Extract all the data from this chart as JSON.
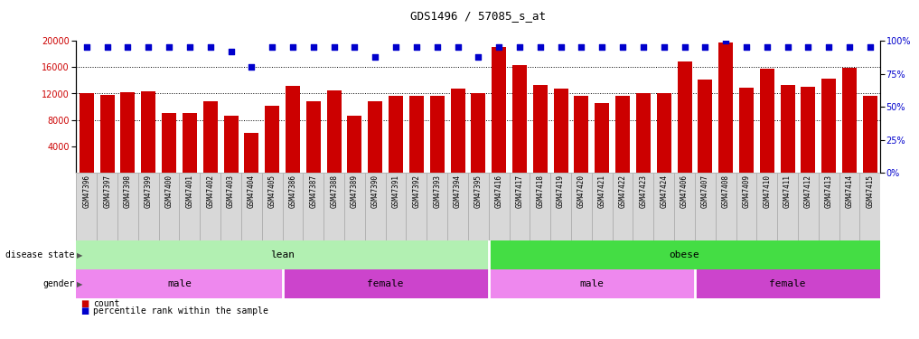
{
  "title": "GDS1496 / 57085_s_at",
  "samples": [
    "GSM47396",
    "GSM47397",
    "GSM47398",
    "GSM47399",
    "GSM47400",
    "GSM47401",
    "GSM47402",
    "GSM47403",
    "GSM47404",
    "GSM47405",
    "GSM47386",
    "GSM47387",
    "GSM47388",
    "GSM47389",
    "GSM47390",
    "GSM47391",
    "GSM47392",
    "GSM47393",
    "GSM47394",
    "GSM47395",
    "GSM47416",
    "GSM47417",
    "GSM47418",
    "GSM47419",
    "GSM47420",
    "GSM47421",
    "GSM47422",
    "GSM47423",
    "GSM47424",
    "GSM47406",
    "GSM47407",
    "GSM47408",
    "GSM47409",
    "GSM47410",
    "GSM47411",
    "GSM47412",
    "GSM47413",
    "GSM47414",
    "GSM47415"
  ],
  "counts": [
    12100,
    11800,
    12200,
    12300,
    9000,
    9000,
    10900,
    8600,
    6100,
    10200,
    13200,
    10800,
    12500,
    8700,
    10800,
    11600,
    11700,
    11600,
    12700,
    12000,
    19000,
    16300,
    13300,
    12800,
    11600,
    10500,
    11700,
    12100,
    12000,
    16800,
    14100,
    19700,
    12900,
    15700,
    13300,
    13000,
    14300,
    15900,
    11700
  ],
  "percentiles": [
    95,
    95,
    95,
    95,
    95,
    95,
    95,
    92,
    80,
    95,
    95,
    95,
    95,
    95,
    88,
    95,
    95,
    95,
    95,
    88,
    95,
    95,
    95,
    95,
    95,
    95,
    95,
    95,
    95,
    95,
    95,
    100,
    95,
    95,
    95,
    95,
    95,
    95,
    95
  ],
  "bar_color": "#cc0000",
  "dot_color": "#0000cc",
  "ylim_left": [
    0,
    20000
  ],
  "ylim_right": [
    0,
    100
  ],
  "yticks_left": [
    4000,
    8000,
    12000,
    16000,
    20000
  ],
  "yticks_right": [
    0,
    25,
    50,
    75,
    100
  ],
  "grid_values": [
    8000,
    12000,
    16000
  ],
  "disease_state_lean": [
    0,
    19
  ],
  "disease_state_obese": [
    20,
    38
  ],
  "gender_lean_male": [
    0,
    9
  ],
  "gender_lean_female": [
    10,
    19
  ],
  "gender_obese_male": [
    20,
    29
  ],
  "gender_obese_female": [
    30,
    38
  ],
  "lean_color": "#b2f0b2",
  "obese_color": "#44dd44",
  "male_color": "#ee88ee",
  "female_color": "#cc44cc",
  "tick_bg_color": "#d8d8d8",
  "title_fontsize": 9,
  "bar_width": 0.7
}
